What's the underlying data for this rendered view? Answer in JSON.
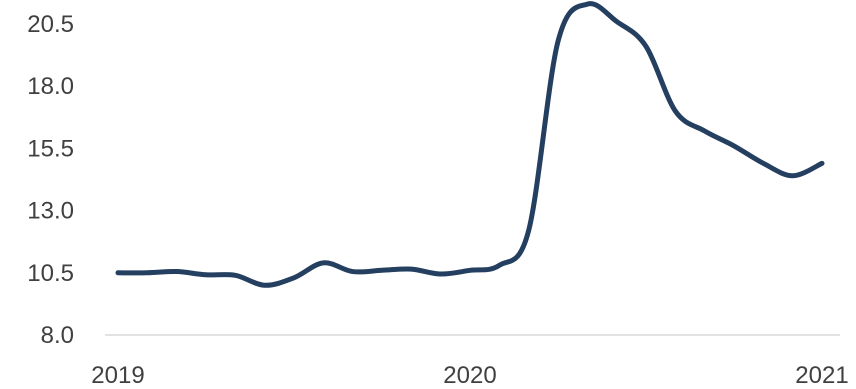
{
  "chart_data": {
    "type": "line",
    "title": "",
    "xlabel": "",
    "ylabel": "",
    "x_ticks": [
      "2019",
      "2020",
      "2021"
    ],
    "y_ticks": [
      "8.0",
      "10.5",
      "13.0",
      "15.5",
      "18.0",
      "20.5"
    ],
    "ylim": [
      8.0,
      21.5
    ],
    "xlim": [
      0,
      24
    ],
    "grid": false,
    "legend": "none",
    "series": [
      {
        "color": "#243F60",
        "points": [
          {
            "x": 0,
            "y": 10.5
          },
          {
            "x": 1,
            "y": 10.5
          },
          {
            "x": 2,
            "y": 10.55
          },
          {
            "x": 3,
            "y": 10.42
          },
          {
            "x": 4,
            "y": 10.4
          },
          {
            "x": 5,
            "y": 10.0
          },
          {
            "x": 6,
            "y": 10.3
          },
          {
            "x": 7,
            "y": 10.9
          },
          {
            "x": 8,
            "y": 10.55
          },
          {
            "x": 9,
            "y": 10.6
          },
          {
            "x": 10,
            "y": 10.65
          },
          {
            "x": 11,
            "y": 10.45
          },
          {
            "x": 12,
            "y": 10.6
          },
          {
            "x": 13,
            "y": 10.8
          },
          {
            "x": 14,
            "y": 12.2
          },
          {
            "x": 15,
            "y": 19.8
          },
          {
            "x": 16,
            "y": 21.3
          },
          {
            "x": 17,
            "y": 20.6
          },
          {
            "x": 18,
            "y": 19.6
          },
          {
            "x": 19,
            "y": 17.0
          },
          {
            "x": 20,
            "y": 16.2
          },
          {
            "x": 21,
            "y": 15.6
          },
          {
            "x": 22,
            "y": 14.9
          },
          {
            "x": 23,
            "y": 14.4
          },
          {
            "x": 24,
            "y": 14.9
          }
        ]
      }
    ]
  }
}
